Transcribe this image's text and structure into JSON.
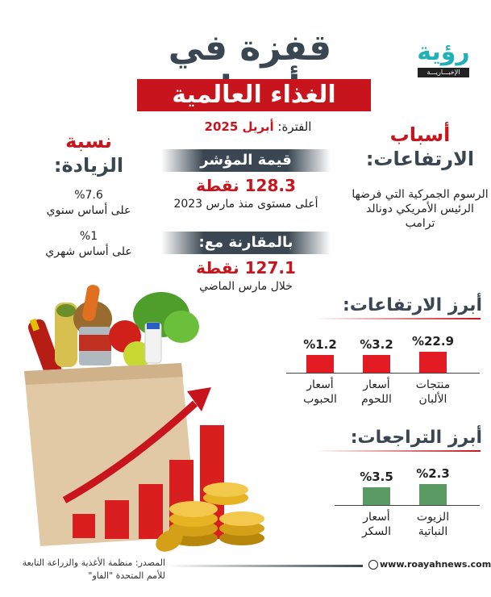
{
  "header": {
    "title_line1": "قفزة في أسعار",
    "title_line2": "الغذاء العالمية",
    "logo_main": "رؤية",
    "logo_sub": "الإخبـــاريـــة"
  },
  "period": {
    "label": "الفترة:",
    "value": "أبريل 2025"
  },
  "index_value": {
    "heading": "قيمة المؤشر",
    "value": "128.3 نقطة",
    "note": "أعلى مستوى منذ مارس 2023"
  },
  "comparison": {
    "heading": "بالمقارنة مع:",
    "value": "127.1 نقطة",
    "note": "خلال مارس الماضي"
  },
  "causes": {
    "heading_line1": "أسباب",
    "heading_line2": "الارتفاعات:",
    "text": "الرسوم الجمركية التي فرضها الرئيس الأمريكي دونالد ترامب"
  },
  "increase_rate": {
    "heading_line1": "نسبة",
    "heading_line2": "الزيادة:",
    "annual_value": "%7.6",
    "annual_label": "على أساس سنوي",
    "monthly_value": "%1",
    "monthly_label": "على أساس شهري"
  },
  "chart_data": [
    {
      "type": "bar",
      "title": "أبرز الارتفاعات:",
      "categories": [
        "منتجات الألبان",
        "أسعار اللحوم",
        "أسعار الحبوب"
      ],
      "values": [
        22.9,
        3.2,
        1.2
      ],
      "value_labels": [
        "%22.9",
        "%3.2",
        "%1.2"
      ],
      "color": "#e31b23"
    },
    {
      "type": "bar",
      "title": "أبرز التراجعات:",
      "categories": [
        "الزيوت النباتية",
        "أسعار السكر"
      ],
      "values": [
        2.3,
        3.5
      ],
      "value_labels": [
        "%2.3",
        "%3.5"
      ],
      "color": "#5a9a63"
    }
  ],
  "footer": {
    "source": "المصدر: منظمة الأغذية والزراعة التابعة للأمم المتحدة \"الفاو\"",
    "website": "www.roayahnews.com"
  },
  "icons": [
    "globe-icon",
    "grocery-bag-illustration",
    "rising-arrow-icon",
    "coin-stack-icon"
  ]
}
